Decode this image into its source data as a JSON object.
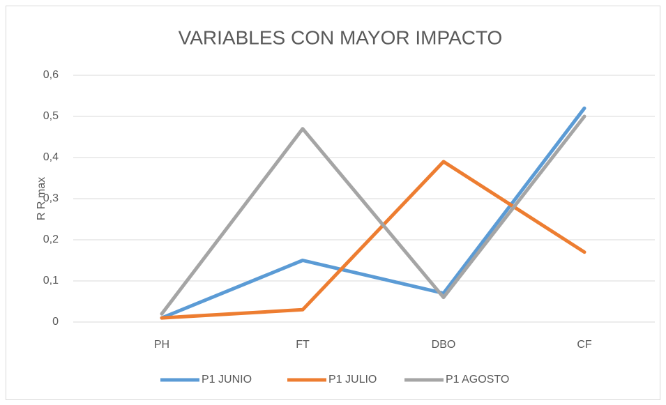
{
  "chart_data": {
    "type": "line",
    "title": "VARIABLES CON MAYOR IMPACTO",
    "y_label": "R  R max",
    "categories": [
      "PH",
      "FT",
      "DBO",
      "CF"
    ],
    "series": [
      {
        "name": "P1 JUNIO",
        "color": "#5b9bd5",
        "values": [
          0.01,
          0.15,
          0.07,
          0.52
        ]
      },
      {
        "name": "P1 JULIO",
        "color": "#ed7d31",
        "values": [
          0.01,
          0.03,
          0.39,
          0.17
        ]
      },
      {
        "name": "P1 AGOSTO",
        "color": "#a5a5a5",
        "values": [
          0.02,
          0.47,
          0.06,
          0.5
        ]
      }
    ],
    "ylim": [
      0,
      0.6
    ],
    "yticks": [
      0,
      {
        "value": 0.1,
        "label": "0,1"
      },
      {
        "value": 0.2,
        "label": "0,2"
      },
      {
        "value": 0.3,
        "label": "0,3"
      },
      {
        "value": 0.4,
        "label": "0,4"
      },
      {
        "value": 0.5,
        "label": "0,5"
      },
      {
        "value": 0.6,
        "label": "0,6"
      }
    ],
    "grid": true,
    "legend": "bottom"
  }
}
